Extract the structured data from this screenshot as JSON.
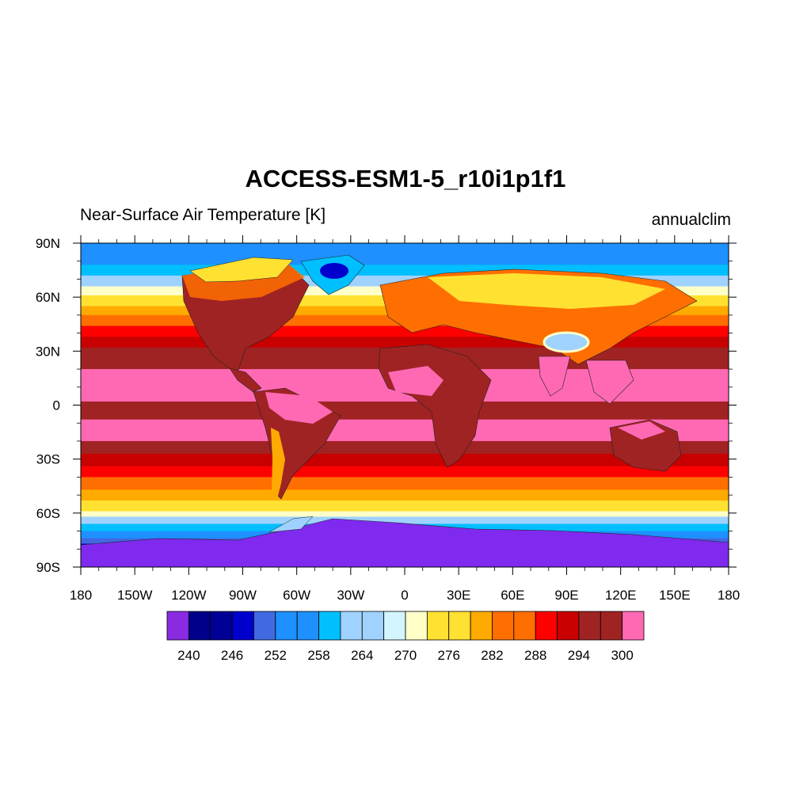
{
  "title": "ACCESS-ESM1-5_r10i1p1f1",
  "left_string": "Near-Surface Air Temperature [K]",
  "right_string": "annualclim",
  "map": {
    "projection": "cylindrical-equidistant",
    "lon_range": [
      -180,
      180
    ],
    "lat_range": [
      -90,
      90
    ],
    "lon_ticks": [
      {
        "value": -180,
        "label": "180"
      },
      {
        "value": -150,
        "label": "150W"
      },
      {
        "value": -120,
        "label": "120W"
      },
      {
        "value": -90,
        "label": "90W"
      },
      {
        "value": -60,
        "label": "60W"
      },
      {
        "value": -30,
        "label": "30W"
      },
      {
        "value": 0,
        "label": "0"
      },
      {
        "value": 30,
        "label": "30E"
      },
      {
        "value": 60,
        "label": "60E"
      },
      {
        "value": 90,
        "label": "90E"
      },
      {
        "value": 120,
        "label": "120E"
      },
      {
        "value": 150,
        "label": "150E"
      },
      {
        "value": 180,
        "label": "180"
      }
    ],
    "lat_ticks": [
      {
        "value": 90,
        "label": "90N"
      },
      {
        "value": 60,
        "label": "60N"
      },
      {
        "value": 30,
        "label": "30N"
      },
      {
        "value": 0,
        "label": "0"
      },
      {
        "value": -30,
        "label": "30S"
      },
      {
        "value": -60,
        "label": "60S"
      },
      {
        "value": -90,
        "label": "90S"
      }
    ],
    "ocean_bands": [
      {
        "lat_top": 90,
        "lat_bottom": 78,
        "color": "#1e90ff"
      },
      {
        "lat_top": 78,
        "lat_bottom": 72,
        "color": "#00bfff"
      },
      {
        "lat_top": 72,
        "lat_bottom": 66,
        "color": "#a0d2ff"
      },
      {
        "lat_top": 66,
        "lat_bottom": 61,
        "color": "#ffffc8"
      },
      {
        "lat_top": 61,
        "lat_bottom": 55,
        "color": "#ffe132"
      },
      {
        "lat_top": 55,
        "lat_bottom": 50,
        "color": "#ffaa00"
      },
      {
        "lat_top": 50,
        "lat_bottom": 44,
        "color": "#ff6e00"
      },
      {
        "lat_top": 44,
        "lat_bottom": 38,
        "color": "#ff0000"
      },
      {
        "lat_top": 38,
        "lat_bottom": 32,
        "color": "#c80000"
      },
      {
        "lat_top": 32,
        "lat_bottom": 20,
        "color": "#a02323"
      },
      {
        "lat_top": 20,
        "lat_bottom": 2,
        "color": "#ff69b4"
      },
      {
        "lat_top": 2,
        "lat_bottom": -8,
        "color": "#a02323"
      },
      {
        "lat_top": -8,
        "lat_bottom": -20,
        "color": "#ff69b4"
      },
      {
        "lat_top": -20,
        "lat_bottom": -27,
        "color": "#a02323"
      },
      {
        "lat_top": -27,
        "lat_bottom": -34,
        "color": "#c80000"
      },
      {
        "lat_top": -34,
        "lat_bottom": -40,
        "color": "#ff0000"
      },
      {
        "lat_top": -40,
        "lat_bottom": -47,
        "color": "#ff6e00"
      },
      {
        "lat_top": -47,
        "lat_bottom": -53,
        "color": "#ffaa00"
      },
      {
        "lat_top": -53,
        "lat_bottom": -59,
        "color": "#ffe132"
      },
      {
        "lat_top": -59,
        "lat_bottom": -62,
        "color": "#ffffc8"
      },
      {
        "lat_top": -62,
        "lat_bottom": -66,
        "color": "#a0d2ff"
      },
      {
        "lat_top": -66,
        "lat_bottom": -70,
        "color": "#00bfff"
      },
      {
        "lat_top": -70,
        "lat_bottom": -74,
        "color": "#1e90ff"
      },
      {
        "lat_top": -74,
        "lat_bottom": -77,
        "color": "#4169e1"
      },
      {
        "lat_top": -77,
        "lat_bottom": -80,
        "color": "#0000cd"
      },
      {
        "lat_top": -80,
        "lat_bottom": -84,
        "color": "#00008b"
      },
      {
        "lat_top": -84,
        "lat_bottom": -90,
        "color": "#7f2aee"
      }
    ]
  },
  "colorbar": {
    "colors": [
      "#8a2be2",
      "#00008b",
      "#000096",
      "#0000cd",
      "#4169e1",
      "#1e90ff",
      "#1e90ff",
      "#00bfff",
      "#a0d2ff",
      "#a0d2ff",
      "#d2f5ff",
      "#ffffc8",
      "#ffe132",
      "#ffe132",
      "#ffaa00",
      "#ff6e00",
      "#ff6e00",
      "#ff0000",
      "#c80000",
      "#a02323",
      "#a02323",
      "#ff69b4"
    ],
    "labels": [
      {
        "index": 1,
        "text": "240"
      },
      {
        "index": 4,
        "text": "246"
      },
      {
        "index": 7,
        "text": "252"
      },
      {
        "index": 10,
        "text": "258"
      },
      {
        "index": 13,
        "text": "264"
      },
      {
        "index": 16,
        "text": "270"
      },
      {
        "index": 19,
        "text": "276"
      },
      {
        "index": 22,
        "text": "282"
      },
      {
        "index": 25,
        "text": "288"
      },
      {
        "index": 28,
        "text": "294"
      },
      {
        "index": 31,
        "text": "300"
      }
    ]
  }
}
